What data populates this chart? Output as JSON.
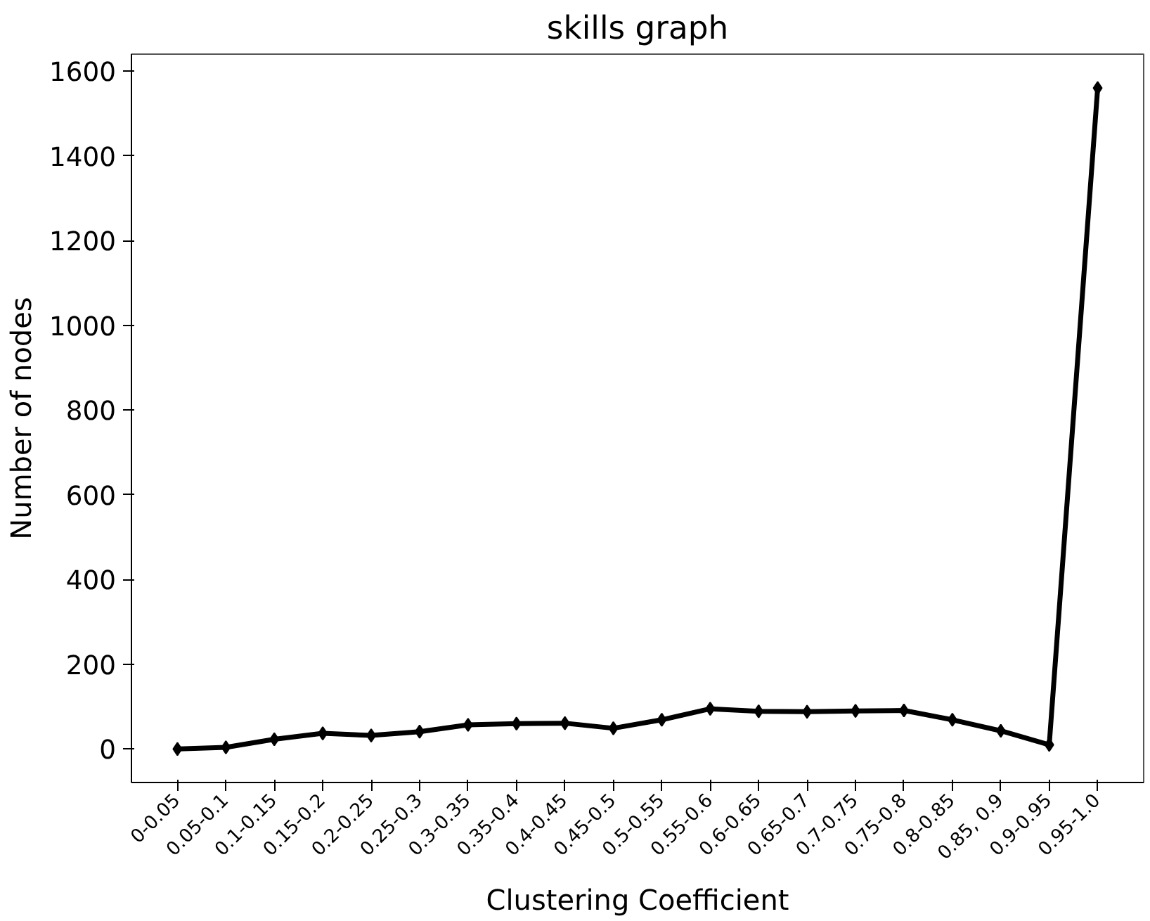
{
  "chart_data": {
    "type": "line",
    "title": "skills graph",
    "xlabel": "Clustering Coefficient",
    "ylabel": "Number of nodes",
    "categories": [
      "0-0.05",
      "0.05-0.1",
      "0.1-0.15",
      "0.15-0.2",
      "0.2-0.25",
      "0.25-0.3",
      "0.3-0.35",
      "0.35-0.4",
      "0.4-0.45",
      "0.45-0.5",
      "0.5-0.55",
      "0.55-0.6",
      "0.6-0.65",
      "0.65-0.7",
      "0.7-0.75",
      "0.75-0.8",
      "0.8-0.85",
      "0.85, 0.9",
      "0.9-0.95",
      "0.95-1.0"
    ],
    "series": [
      {
        "color": "#000000",
        "values": [
          0,
          4,
          23,
          37,
          32,
          41,
          57,
          60,
          61,
          49,
          69,
          95,
          89,
          88,
          90,
          91,
          69,
          43,
          10,
          1560
        ]
      }
    ],
    "ylim": [
      -79,
      1640
    ],
    "yticks": [
      0,
      200,
      400,
      600,
      800,
      1000,
      1200,
      1400,
      1600
    ],
    "grid": false,
    "marker": "diamond",
    "line_style": "solid"
  }
}
